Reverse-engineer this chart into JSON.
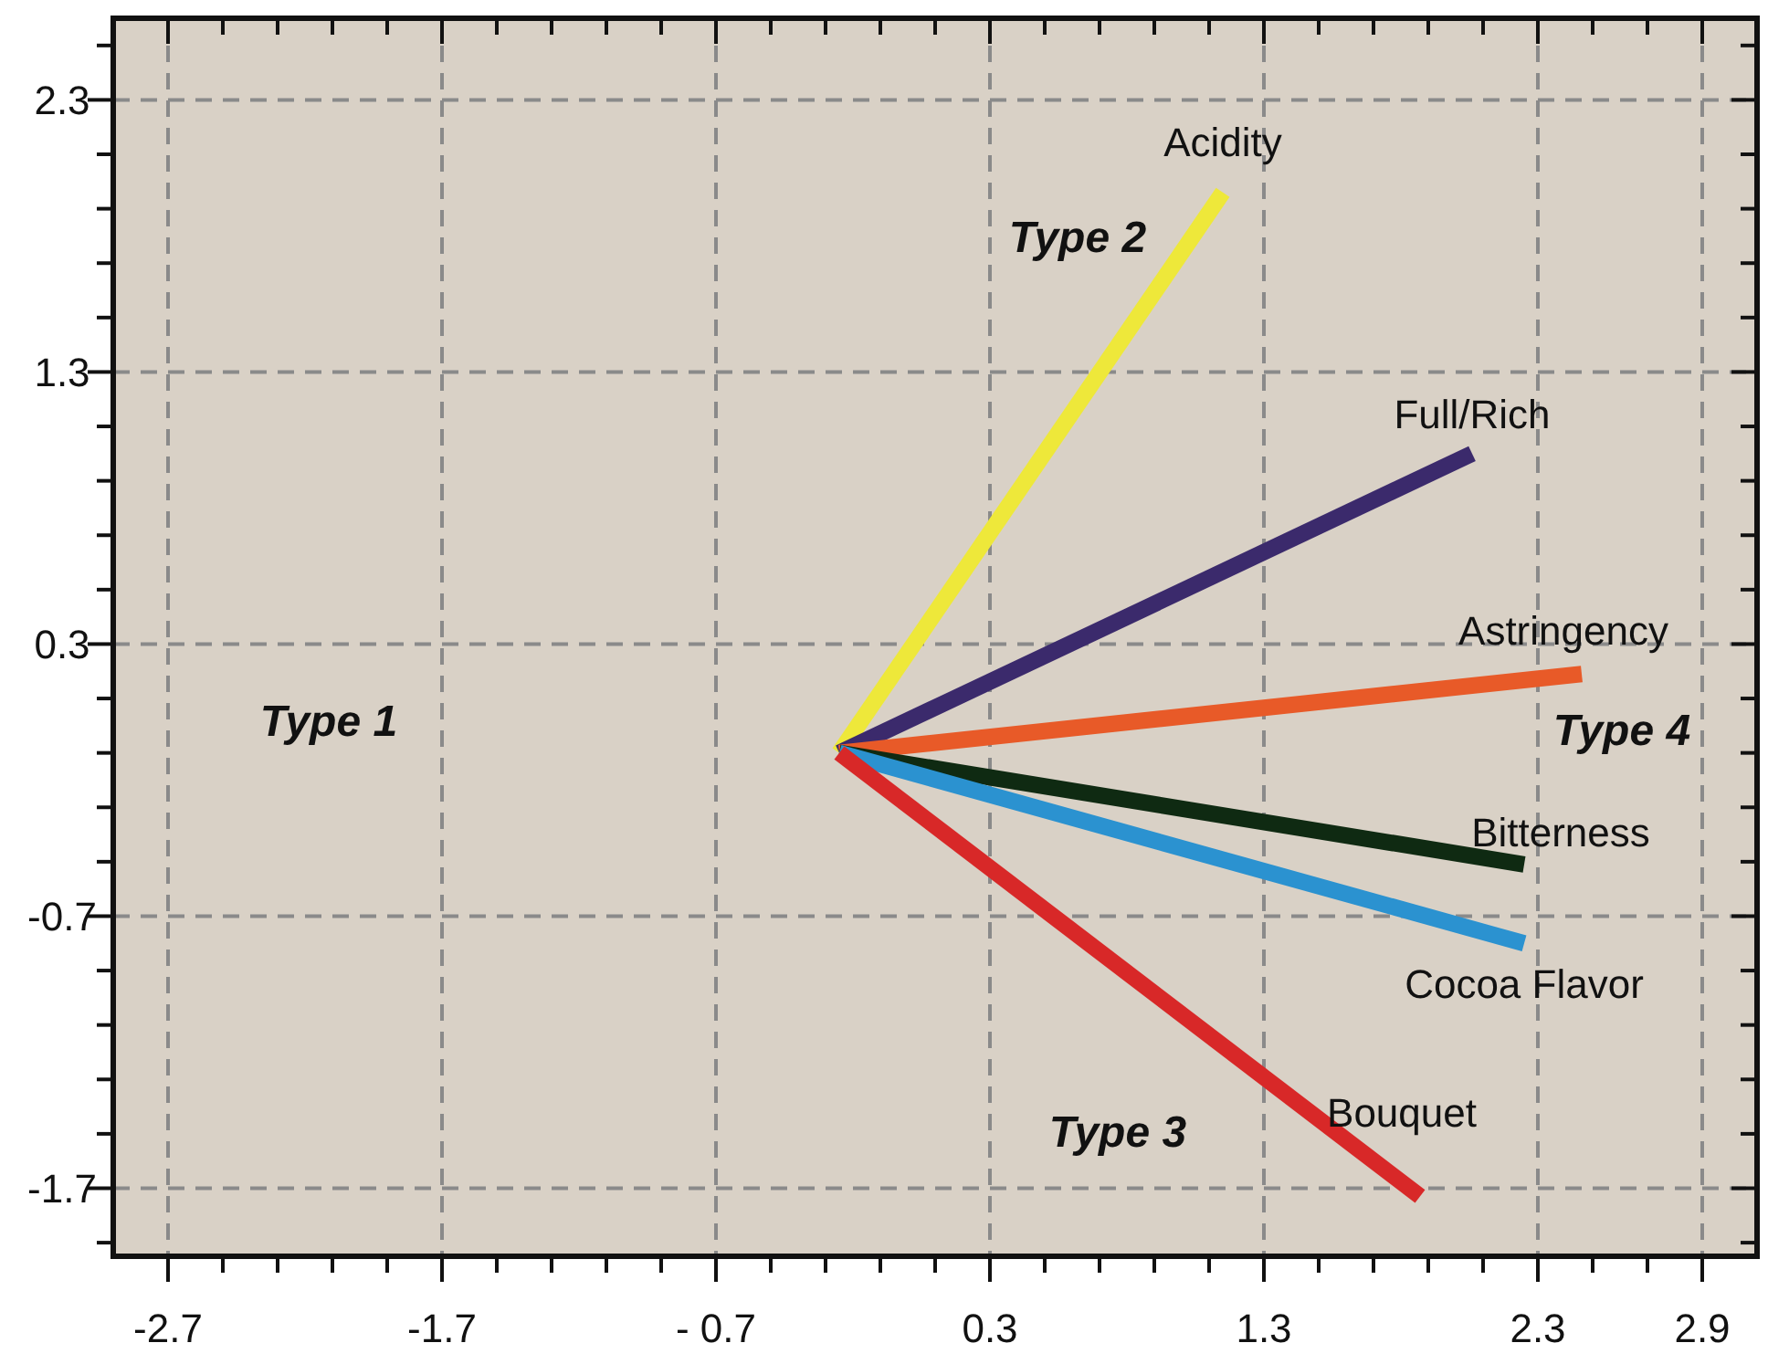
{
  "chart_data": {
    "type": "line",
    "xlim": [
      -2.9,
      3.1
    ],
    "ylim": [
      -1.95,
      2.6
    ],
    "xticks": [
      -2.7,
      {
        "value": -2.5,
        "label": null
      },
      {
        "value": -2.3,
        "label": null
      },
      {
        "value": -2.1,
        "label": null
      },
      {
        "value": -1.9,
        "label": null
      },
      -1.7,
      {
        "value": -1.5,
        "label": null
      },
      {
        "value": -1.3,
        "label": null
      },
      {
        "value": -1.1,
        "label": null
      },
      {
        "value": -0.9,
        "label": null
      },
      {
        "value": -0.7,
        "label": "- 0.7"
      },
      {
        "value": -0.5,
        "label": null
      },
      {
        "value": -0.3,
        "label": null
      },
      {
        "value": -0.1,
        "label": null
      },
      {
        "value": 0.1,
        "label": null
      },
      0.3,
      {
        "value": 0.5,
        "label": null
      },
      {
        "value": 0.7,
        "label": null
      },
      {
        "value": 0.9,
        "label": null
      },
      {
        "value": 1.1,
        "label": null
      },
      1.3,
      {
        "value": 1.5,
        "label": null
      },
      {
        "value": 1.7,
        "label": null
      },
      {
        "value": 1.9,
        "label": null
      },
      {
        "value": 2.1,
        "label": null
      },
      2.3,
      {
        "value": 2.5,
        "label": null
      },
      {
        "value": 2.7,
        "label": null
      },
      2.9
    ],
    "yticks": [
      {
        "value": -1.9,
        "label": null
      },
      -1.7,
      {
        "value": -1.5,
        "label": null
      },
      {
        "value": -1.3,
        "label": null
      },
      {
        "value": -1.1,
        "label": null
      },
      {
        "value": -0.9,
        "label": null
      },
      -0.7,
      {
        "value": -0.5,
        "label": null
      },
      {
        "value": -0.3,
        "label": null
      },
      {
        "value": -0.1,
        "label": null
      },
      {
        "value": 0.1,
        "label": null
      },
      0.3,
      {
        "value": 0.5,
        "label": null
      },
      {
        "value": 0.7,
        "label": null
      },
      {
        "value": 0.9,
        "label": null
      },
      {
        "value": 1.1,
        "label": null
      },
      1.3,
      {
        "value": 1.5,
        "label": null
      },
      {
        "value": 1.7,
        "label": null
      },
      {
        "value": 1.9,
        "label": null
      },
      {
        "value": 2.1,
        "label": null
      },
      2.3,
      {
        "value": 2.5,
        "label": null
      }
    ],
    "grid": true,
    "marker": "none",
    "line_style": "solid",
    "series": [
      {
        "name": "Acidity",
        "color": "#eee83a",
        "x": [
          -0.25,
          1.15
        ],
        "values": [
          -0.1,
          1.96
        ]
      },
      {
        "name": "Full/Rich",
        "color": "#3b2a6c",
        "x": [
          -0.25,
          2.06
        ],
        "values": [
          -0.1,
          1.0
        ]
      },
      {
        "name": "Astringency",
        "color": "#e85a28",
        "x": [
          -0.25,
          2.46
        ],
        "values": [
          -0.1,
          0.19
        ]
      },
      {
        "name": "Bitterness",
        "color": "#0f2a12",
        "x": [
          -0.25,
          2.25
        ],
        "values": [
          -0.1,
          -0.51
        ]
      },
      {
        "name": "Cocoa Flavor",
        "color": "#2b92d0",
        "x": [
          -0.25,
          2.25
        ],
        "values": [
          -0.1,
          -0.8
        ]
      },
      {
        "name": "Bouquet",
        "color": "#d82828",
        "x": [
          -0.25,
          1.87
        ],
        "values": [
          -0.1,
          -1.73
        ]
      }
    ],
    "annotations": [
      "Type 1",
      "Type 2",
      "Type 3",
      "Type 4"
    ]
  }
}
